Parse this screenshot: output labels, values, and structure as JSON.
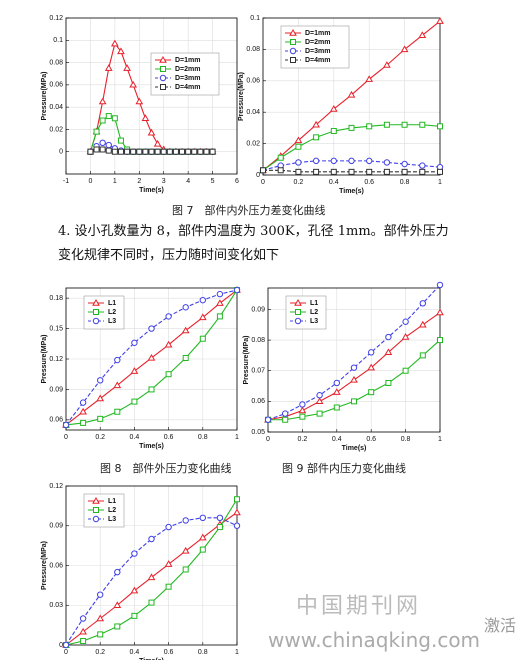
{
  "chart_data": [
    {
      "type": "line",
      "x_label": "Time(s)",
      "y_label": "Pressure(MPa)",
      "xlim": [
        -1,
        6
      ],
      "xticks": [
        -1,
        0,
        1,
        2,
        3,
        4,
        5,
        6
      ],
      "ylim": [
        -0.02,
        0.12
      ],
      "yticks": [
        0,
        0.02,
        0.04,
        0.06,
        0.08,
        0.1,
        0.12
      ],
      "grid": true,
      "legend": "upper right",
      "x": [
        0,
        0.25,
        0.5,
        0.75,
        1,
        1.25,
        1.5,
        1.75,
        2,
        2.25,
        2.5,
        2.75,
        3,
        3.25,
        3.5,
        3.75,
        4,
        4.25,
        4.5,
        4.75,
        5
      ],
      "series": [
        {
          "name": "D=1mm",
          "color": "#e8202a",
          "marker": "triangle",
          "dashed": false,
          "values": [
            0,
            0.018,
            0.045,
            0.075,
            0.097,
            0.09,
            0.075,
            0.06,
            0.045,
            0.03,
            0.017,
            0.007,
            0.002,
            0,
            0,
            0,
            0,
            0,
            0,
            0,
            0
          ]
        },
        {
          "name": "D=2mm",
          "color": "#22b822",
          "marker": "square",
          "dashed": false,
          "values": [
            0,
            0.018,
            0.028,
            0.032,
            0.03,
            0.01,
            0.002,
            0,
            0,
            0,
            0,
            0,
            0,
            0,
            0,
            0,
            0,
            0,
            0,
            0,
            0
          ]
        },
        {
          "name": "D=3mm",
          "color": "#3f3fe8",
          "marker": "circle",
          "dashed": true,
          "values": [
            0,
            0.005,
            0.008,
            0.006,
            0.003,
            0.001,
            0,
            0,
            0,
            0,
            0,
            0,
            0,
            0,
            0,
            0,
            0,
            0,
            0,
            0,
            0
          ]
        },
        {
          "name": "D=4mm",
          "color": "#333333",
          "marker": "square",
          "dashed": true,
          "values": [
            0,
            0.002,
            0.002,
            0.001,
            0,
            0,
            0,
            0,
            0,
            0,
            0,
            0,
            0,
            0,
            0,
            0,
            0,
            0,
            0,
            0,
            0
          ]
        }
      ]
    },
    {
      "type": "line",
      "x_label": "Time(s)",
      "y_label": "Pressure(MPa)",
      "xlim": [
        0,
        1
      ],
      "xticks": [
        0,
        0.2,
        0.4,
        0.6,
        0.8,
        1
      ],
      "ylim": [
        0,
        0.1
      ],
      "yticks": [
        0,
        0.02,
        0.04,
        0.06,
        0.08,
        0.1
      ],
      "grid": true,
      "legend": "upper left",
      "x": [
        0,
        0.1,
        0.2,
        0.3,
        0.4,
        0.5,
        0.6,
        0.7,
        0.8,
        0.9,
        1
      ],
      "series": [
        {
          "name": "D=1mm",
          "color": "#e8202a",
          "marker": "triangle",
          "dashed": false,
          "values": [
            0.003,
            0.012,
            0.022,
            0.032,
            0.042,
            0.051,
            0.061,
            0.07,
            0.08,
            0.089,
            0.098
          ]
        },
        {
          "name": "D=2mm",
          "color": "#22b822",
          "marker": "square",
          "dashed": false,
          "values": [
            0.003,
            0.011,
            0.018,
            0.024,
            0.028,
            0.03,
            0.031,
            0.032,
            0.032,
            0.032,
            0.031
          ]
        },
        {
          "name": "D=3mm",
          "color": "#3f3fe8",
          "marker": "circle",
          "dashed": true,
          "values": [
            0.003,
            0.006,
            0.008,
            0.009,
            0.009,
            0.009,
            0.009,
            0.008,
            0.007,
            0.006,
            0.005
          ]
        },
        {
          "name": "D=4mm",
          "color": "#333333",
          "marker": "square",
          "dashed": true,
          "values": [
            0.003,
            0.003,
            0.002,
            0.002,
            0.002,
            0.002,
            0.002,
            0.002,
            0.002,
            0.002,
            0.002
          ]
        }
      ]
    },
    {
      "type": "line",
      "x_label": "Time(s)",
      "y_label": "Pressure(MPa)",
      "xlim": [
        0,
        1
      ],
      "xticks": [
        0,
        0.2,
        0.4,
        0.6,
        0.8,
        1
      ],
      "ylim": [
        0.05,
        0.19
      ],
      "yticks": [
        0.06,
        0.09,
        0.12,
        0.15,
        0.18
      ],
      "grid": true,
      "legend": "upper left",
      "x": [
        0,
        0.1,
        0.2,
        0.3,
        0.4,
        0.5,
        0.6,
        0.7,
        0.8,
        0.9,
        1
      ],
      "series": [
        {
          "name": "L1",
          "color": "#e8202a",
          "marker": "triangle",
          "dashed": false,
          "values": [
            0.055,
            0.068,
            0.081,
            0.094,
            0.108,
            0.121,
            0.134,
            0.148,
            0.161,
            0.175,
            0.188
          ]
        },
        {
          "name": "L2",
          "color": "#22b822",
          "marker": "square",
          "dashed": false,
          "values": [
            0.055,
            0.057,
            0.061,
            0.068,
            0.078,
            0.09,
            0.105,
            0.121,
            0.14,
            0.162,
            0.188
          ]
        },
        {
          "name": "L3",
          "color": "#3f3fe8",
          "marker": "circle",
          "dashed": true,
          "values": [
            0.055,
            0.077,
            0.099,
            0.119,
            0.136,
            0.15,
            0.162,
            0.171,
            0.178,
            0.184,
            0.188
          ]
        }
      ]
    },
    {
      "type": "line",
      "x_label": "Time(s)",
      "y_label": "Pressure(MPa)",
      "xlim": [
        0,
        1
      ],
      "xticks": [
        0,
        0.2,
        0.4,
        0.6,
        0.8,
        1
      ],
      "ylim": [
        0.05,
        0.097
      ],
      "yticks": [
        0.05,
        0.06,
        0.07,
        0.08,
        0.09
      ],
      "grid": true,
      "legend": "upper left",
      "x": [
        0,
        0.1,
        0.2,
        0.3,
        0.4,
        0.5,
        0.6,
        0.7,
        0.8,
        0.9,
        1
      ],
      "series": [
        {
          "name": "L1",
          "color": "#e8202a",
          "marker": "triangle",
          "dashed": false,
          "values": [
            0.054,
            0.055,
            0.057,
            0.06,
            0.063,
            0.067,
            0.071,
            0.076,
            0.081,
            0.085,
            0.089
          ]
        },
        {
          "name": "L2",
          "color": "#22b822",
          "marker": "square",
          "dashed": false,
          "values": [
            0.054,
            0.054,
            0.055,
            0.056,
            0.058,
            0.06,
            0.063,
            0.066,
            0.07,
            0.075,
            0.08
          ]
        },
        {
          "name": "L3",
          "color": "#3f3fe8",
          "marker": "circle",
          "dashed": true,
          "values": [
            0.054,
            0.056,
            0.059,
            0.062,
            0.066,
            0.071,
            0.076,
            0.081,
            0.086,
            0.092,
            0.098
          ]
        }
      ]
    },
    {
      "type": "line",
      "x_label": "Time(s)",
      "y_label": "Pressure(MPa)",
      "xlim": [
        0,
        1
      ],
      "xticks": [
        0,
        0.2,
        0.4,
        0.6,
        0.8,
        1
      ],
      "ylim": [
        0,
        0.12
      ],
      "yticks": [
        0,
        0.03,
        0.06,
        0.09,
        0.12
      ],
      "grid": true,
      "legend": "upper left",
      "x": [
        0,
        0.1,
        0.2,
        0.3,
        0.4,
        0.5,
        0.6,
        0.7,
        0.8,
        0.9,
        1
      ],
      "series": [
        {
          "name": "L1",
          "color": "#e8202a",
          "marker": "triangle",
          "dashed": false,
          "values": [
            0,
            0.01,
            0.02,
            0.03,
            0.041,
            0.051,
            0.061,
            0.071,
            0.081,
            0.091,
            0.1
          ]
        },
        {
          "name": "L2",
          "color": "#22b822",
          "marker": "square",
          "dashed": false,
          "values": [
            0,
            0.003,
            0.008,
            0.014,
            0.022,
            0.032,
            0.044,
            0.057,
            0.072,
            0.089,
            0.11
          ]
        },
        {
          "name": "L3",
          "color": "#3f3fe8",
          "marker": "circle",
          "dashed": true,
          "values": [
            0,
            0.02,
            0.038,
            0.055,
            0.069,
            0.08,
            0.089,
            0.094,
            0.096,
            0.096,
            0.09
          ]
        }
      ]
    }
  ],
  "captions": [
    "图 7　部件内外压力差变化曲线",
    "图 8　部件外压力变化曲线",
    "图 9  部件内压力变化曲线"
  ],
  "paragraph": "4.  设小孔数量为 8，部件内温度为 300K，孔径 1mm。部件外压力变化规律不同时，压力随时间变化如下",
  "watermark": {
    "name": "中国期刊网",
    "url": "www.chinaqking.com",
    "activate": "激活"
  }
}
